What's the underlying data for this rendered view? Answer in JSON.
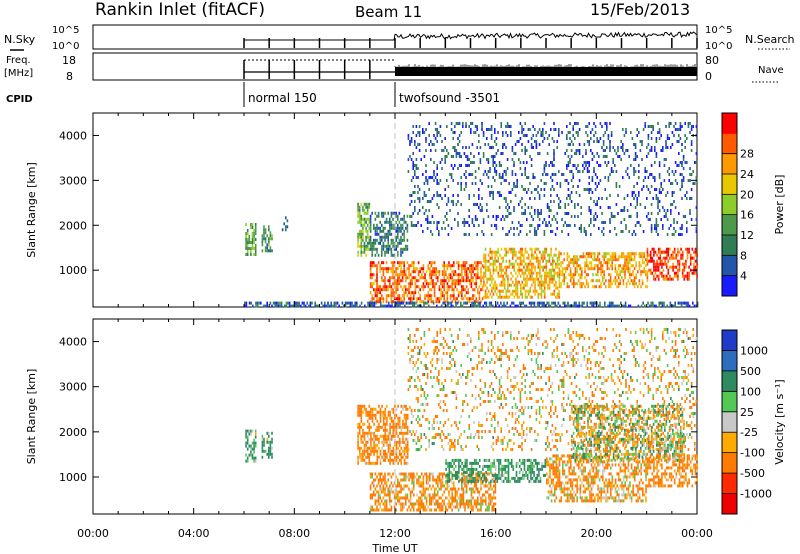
{
  "header": {
    "station": "Rankin Inlet (fitACF)",
    "beam": "Beam 11",
    "date": "15/Feb/2013"
  },
  "params": {
    "nsky_label": "N.Sky",
    "freq_label_top": "Freq.",
    "freq_label_bottom": "[MHz]",
    "cpid_label": "CPID",
    "nsearch_label": "N.Search",
    "nave_label": "Nave",
    "nsky_ticks": [
      "10^5",
      "10^0"
    ],
    "nsearch_ticks": [
      "10^5",
      "10^0"
    ],
    "freq_ticks": [
      "18",
      "8"
    ],
    "nave_ticks": [
      "80",
      "0"
    ],
    "cpid_segments": [
      {
        "label": "normal 150",
        "start_hour": 6.0
      },
      {
        "label": "twofsound -3501",
        "start_hour": 12.0
      }
    ]
  },
  "chart_data": [
    {
      "type": "heatmap",
      "title": "",
      "xlabel": "",
      "ylabel": "Slant Range [km]",
      "xlim": [
        0,
        24
      ],
      "ylim": [
        180,
        4500
      ],
      "x_ticks": [
        0,
        4,
        8,
        12,
        16,
        20,
        24
      ],
      "y_ticks": [
        1000,
        2000,
        3000,
        4000
      ],
      "colorbar": {
        "label": "Power [dB]",
        "ticks": [
          "4",
          "8",
          "12",
          "16",
          "20",
          "24",
          "28"
        ],
        "colors": [
          "#1a1aff",
          "#2355aa",
          "#2e7d55",
          "#4d9a4a",
          "#8ccd2a",
          "#e8c800",
          "#ff9900",
          "#ff5a00",
          "#ff0000"
        ],
        "range": [
          0,
          30
        ]
      },
      "regions": [
        {
          "t": [
            6.05,
            6.45
          ],
          "r": [
            1350,
            2050
          ],
          "value": 12
        },
        {
          "t": [
            6.7,
            7.1
          ],
          "r": [
            1450,
            2000
          ],
          "value": 9
        },
        {
          "t": [
            7.5,
            7.7
          ],
          "r": [
            1800,
            2200
          ],
          "value": 7
        },
        {
          "t": [
            10.5,
            11.0
          ],
          "r": [
            1300,
            2500
          ],
          "value": 13
        },
        {
          "t": [
            11.0,
            12.5
          ],
          "r": [
            1300,
            2300
          ],
          "value": 8
        },
        {
          "t": [
            12.5,
            24.0
          ],
          "r": [
            1800,
            4300
          ],
          "value": 5
        },
        {
          "t": [
            11.0,
            15.5
          ],
          "r": [
            300,
            1200
          ],
          "value": 24
        },
        {
          "t": [
            15.5,
            18.5
          ],
          "r": [
            400,
            1500
          ],
          "value": 20
        },
        {
          "t": [
            18.5,
            22.0
          ],
          "r": [
            600,
            1400
          ],
          "value": 21
        },
        {
          "t": [
            22.0,
            24.0
          ],
          "r": [
            800,
            1500
          ],
          "value": 27
        },
        {
          "t": [
            6.0,
            24.0
          ],
          "r": [
            180,
            300
          ],
          "value": 6
        }
      ]
    },
    {
      "type": "heatmap",
      "title": "",
      "xlabel": "Time UT",
      "ylabel": "Slant Range [km]",
      "xlim": [
        0,
        24
      ],
      "ylim": [
        180,
        4500
      ],
      "x_ticks": [
        0,
        4,
        8,
        12,
        16,
        20,
        24
      ],
      "x_tick_labels": [
        "00:00",
        "04:00",
        "08:00",
        "12:00",
        "16:00",
        "20:00",
        "00:00"
      ],
      "y_ticks": [
        1000,
        2000,
        3000,
        4000
      ],
      "colorbar": {
        "label": "Velocity [m s⁻¹]",
        "ticks": [
          "1000",
          "500",
          "100",
          "25",
          "-25",
          "-100",
          "-500",
          "-1000"
        ],
        "colors": [
          "#1e3cc8",
          "#2e6dbe",
          "#2e8a60",
          "#54c854",
          "#c8c8c8",
          "#ffaa00",
          "#ff7a00",
          "#ff2a00",
          "#ee0000"
        ]
      },
      "regions": [
        {
          "t": [
            6.05,
            6.45
          ],
          "r": [
            1350,
            2050
          ],
          "value": 150
        },
        {
          "t": [
            6.7,
            7.1
          ],
          "r": [
            1450,
            2000
          ],
          "value": 150
        },
        {
          "t": [
            10.5,
            12.5
          ],
          "r": [
            1300,
            2600
          ],
          "value": -200
        },
        {
          "t": [
            12.5,
            24.0
          ],
          "r": [
            1600,
            4300
          ],
          "value": -80
        },
        {
          "t": [
            11.0,
            16.0
          ],
          "r": [
            300,
            1100
          ],
          "value": -150
        },
        {
          "t": [
            14.0,
            18.0
          ],
          "r": [
            900,
            1400
          ],
          "value": 200
        },
        {
          "t": [
            18.0,
            22.0
          ],
          "r": [
            500,
            1500
          ],
          "value": -120
        },
        {
          "t": [
            19.0,
            23.5
          ],
          "r": [
            1400,
            2600
          ],
          "value": 0
        },
        {
          "t": [
            22.0,
            24.0
          ],
          "r": [
            800,
            1500
          ],
          "value": -200
        }
      ]
    }
  ]
}
